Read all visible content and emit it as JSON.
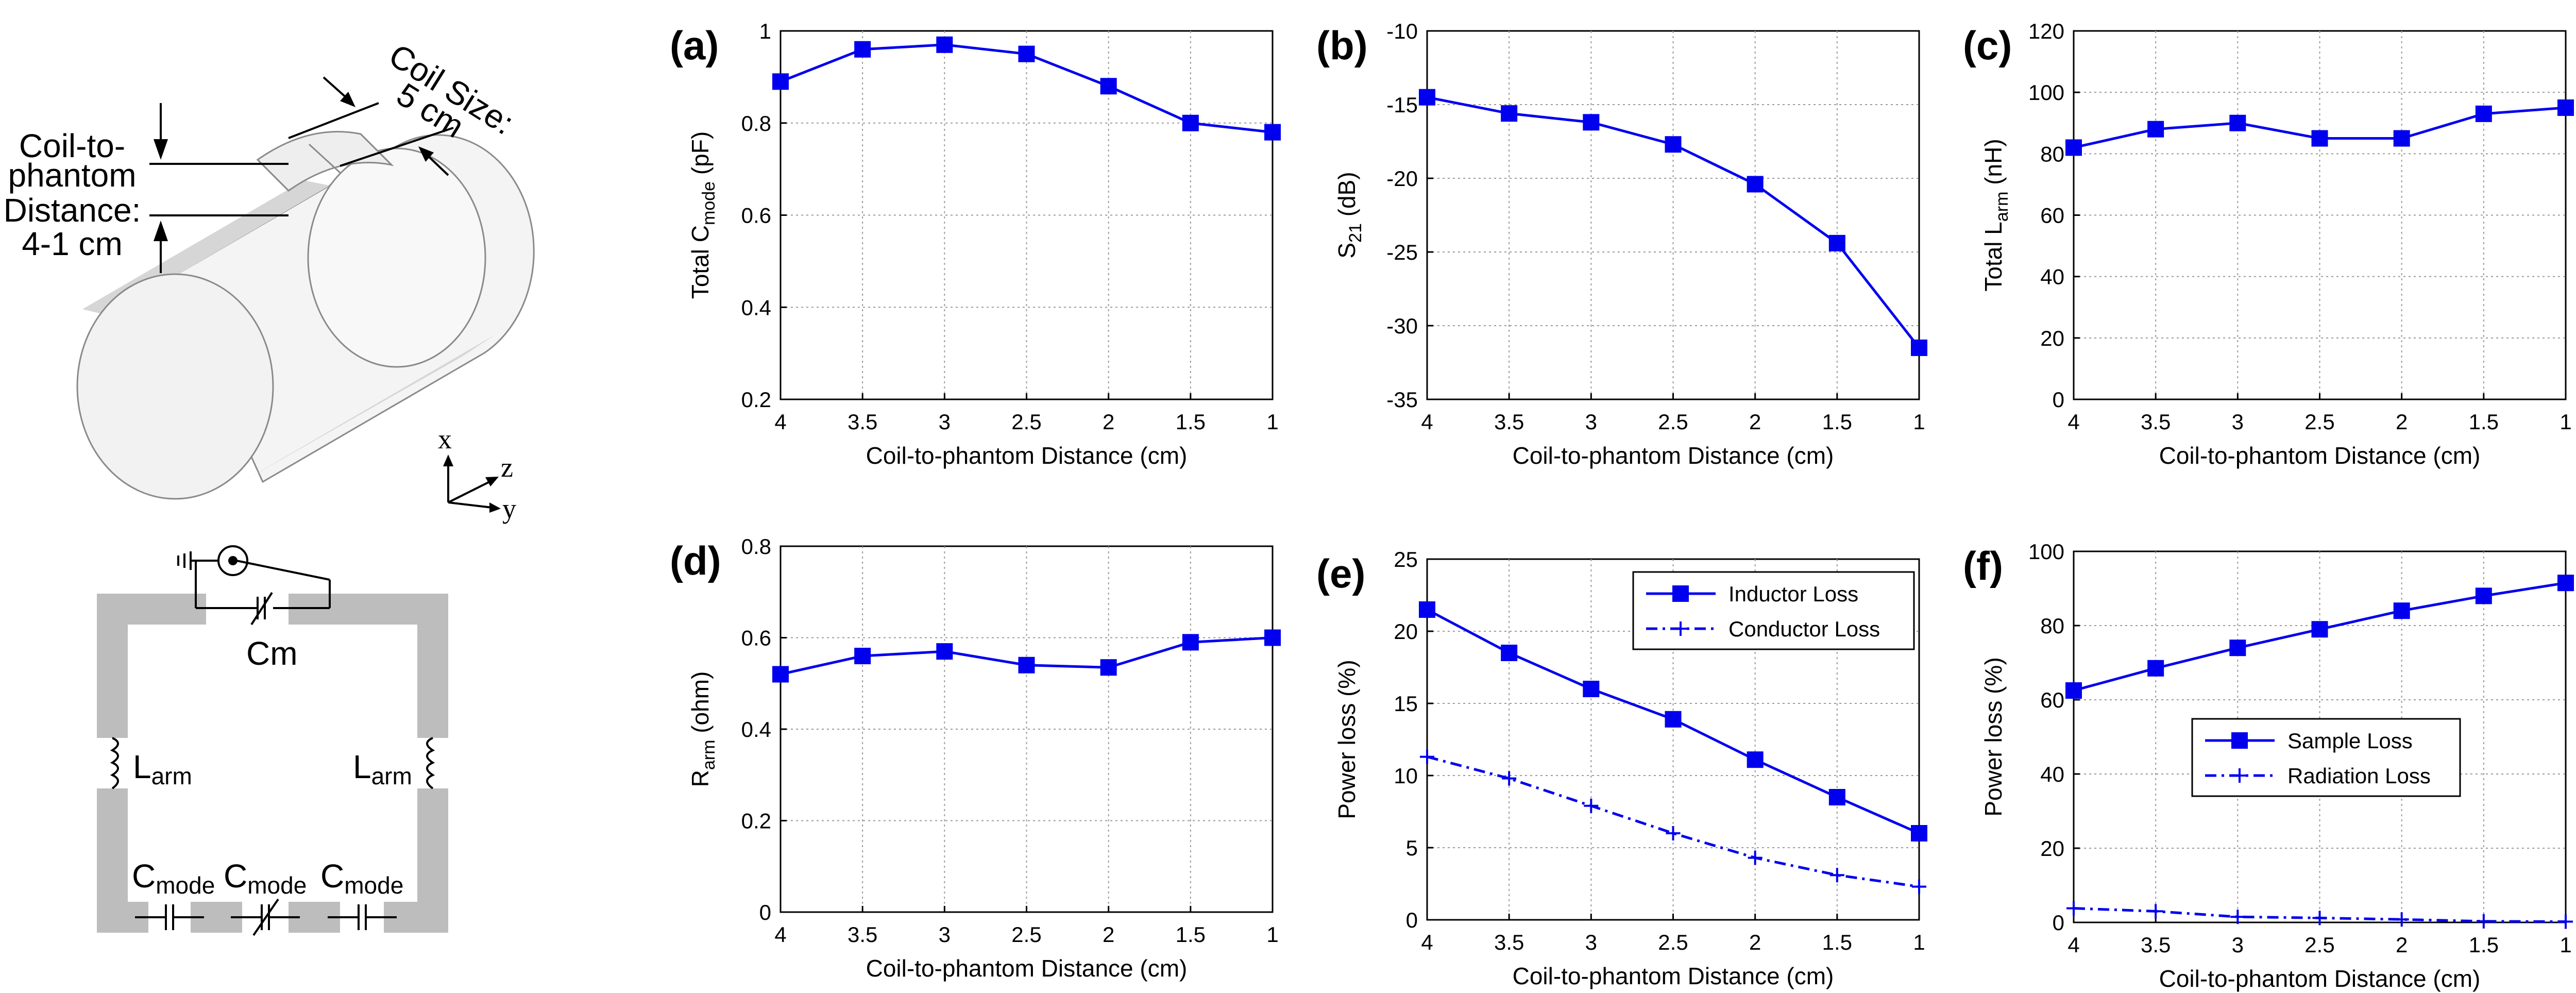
{
  "figure": {
    "phantom": {
      "coil_size_line1": "Coil Size:",
      "coil_size_line2": "5 cm",
      "distance_line1": "Coil-to-",
      "distance_line2": "phantom",
      "distance_line3": "Distance:",
      "distance_line4": "4-1 cm",
      "axis_x": "x",
      "axis_y": "y",
      "axis_z": "z"
    },
    "circuit": {
      "cm_label": "Cm",
      "larm_left_main": "L",
      "larm_left_sub": "arm",
      "larm_right_main": "L",
      "larm_right_sub": "arm",
      "cmode1_main": "C",
      "cmode1_sub": "mode",
      "cmode2_main": "C",
      "cmode2_sub": "mode",
      "cmode3_main": "C",
      "cmode3_sub": "mode"
    }
  },
  "colors": {
    "series": "#0000ee",
    "grid": "#9a9a9a",
    "axis": "#000000"
  },
  "chart_data": [
    {
      "type": "line",
      "panel_label": "(a)",
      "ylabel_main": "Total C",
      "ylabel_sub": "mode",
      "ylabel_tail": " (pF)",
      "xlabel": "Coil-to-phantom Distance (cm)",
      "x_ticks": [
        "4",
        "3.5",
        "3",
        "2.5",
        "2",
        "1.5",
        "1"
      ],
      "y_ticks": [
        "0.2",
        "0.4",
        "0.6",
        "0.8",
        "1"
      ],
      "ylim": [
        0.2,
        1
      ],
      "grid": true,
      "series": [
        {
          "name": "Total C_mode",
          "marker": "square",
          "dash": "solid",
          "x": [
            4,
            3.5,
            3,
            2.5,
            2,
            1.5,
            1
          ],
          "values": [
            0.89,
            0.96,
            0.97,
            0.95,
            0.88,
            0.8,
            0.78
          ]
        }
      ]
    },
    {
      "type": "line",
      "panel_label": "(b)",
      "ylabel_main": "S",
      "ylabel_sub": "21",
      "ylabel_tail": " (dB)",
      "xlabel": "Coil-to-phantom Distance (cm)",
      "x_ticks": [
        "4",
        "3.5",
        "3",
        "2.5",
        "2",
        "1.5",
        "1"
      ],
      "y_ticks": [
        "-35",
        "-30",
        "-25",
        "-20",
        "-15",
        "-10"
      ],
      "ylim": [
        -35,
        -10
      ],
      "grid": true,
      "series": [
        {
          "name": "S21",
          "marker": "square",
          "dash": "solid",
          "x": [
            4,
            3.5,
            3,
            2.5,
            2,
            1.5,
            1
          ],
          "values": [
            -14.5,
            -15.6,
            -16.2,
            -17.7,
            -20.4,
            -24.4,
            -31.5
          ]
        }
      ]
    },
    {
      "type": "line",
      "panel_label": "(c)",
      "ylabel_main": "Total L",
      "ylabel_sub": "arm",
      "ylabel_tail": " (nH)",
      "xlabel": "Coil-to-phantom Distance (cm)",
      "x_ticks": [
        "4",
        "3.5",
        "3",
        "2.5",
        "2",
        "1.5",
        "1"
      ],
      "y_ticks": [
        "0",
        "20",
        "40",
        "60",
        "80",
        "100",
        "120"
      ],
      "ylim": [
        0,
        120
      ],
      "grid": true,
      "series": [
        {
          "name": "Total L_arm",
          "marker": "square",
          "dash": "solid",
          "x": [
            4,
            3.5,
            3,
            2.5,
            2,
            1.5,
            1
          ],
          "values": [
            82,
            88,
            90,
            85,
            85,
            93,
            95
          ]
        }
      ]
    },
    {
      "type": "line",
      "panel_label": "(d)",
      "ylabel_main": "R",
      "ylabel_sub": "arm",
      "ylabel_tail": " (ohm)",
      "xlabel": "Coil-to-phantom Distance (cm)",
      "x_ticks": [
        "4",
        "3.5",
        "3",
        "2.5",
        "2",
        "1.5",
        "1"
      ],
      "y_ticks": [
        "0",
        "0.2",
        "0.4",
        "0.6",
        "0.8"
      ],
      "ylim": [
        0,
        0.8
      ],
      "grid": true,
      "series": [
        {
          "name": "R_arm",
          "marker": "square",
          "dash": "solid",
          "x": [
            4,
            3.5,
            3,
            2.5,
            2,
            1.5,
            1
          ],
          "values": [
            0.52,
            0.56,
            0.57,
            0.54,
            0.535,
            0.59,
            0.6
          ]
        }
      ]
    },
    {
      "type": "line",
      "panel_label": "(e)",
      "ylabel_main": "Power loss (%)",
      "ylabel_sub": "",
      "ylabel_tail": "",
      "xlabel": "Coil-to-phantom Distance (cm)",
      "x_ticks": [
        "4",
        "3.5",
        "3",
        "2.5",
        "2",
        "1.5",
        "1"
      ],
      "y_ticks": [
        "0",
        "5",
        "10",
        "15",
        "20",
        "25"
      ],
      "ylim": [
        0,
        25
      ],
      "grid": true,
      "legend": "top-right",
      "series": [
        {
          "name": "Inductor Loss",
          "marker": "square",
          "dash": "solid",
          "x": [
            4,
            3.5,
            3,
            2.5,
            2,
            1.5,
            1
          ],
          "values": [
            21.5,
            18.5,
            16,
            13.9,
            11.1,
            8.5,
            6
          ]
        },
        {
          "name": "Conductor Loss",
          "marker": "plus",
          "dash": "dashdot",
          "x": [
            4,
            3.5,
            3,
            2.5,
            2,
            1.5,
            1
          ],
          "values": [
            11.3,
            9.8,
            7.9,
            6,
            4.3,
            3.1,
            2.3
          ]
        }
      ]
    },
    {
      "type": "line",
      "panel_label": "(f)",
      "ylabel_main": "Power loss (%)",
      "ylabel_sub": "",
      "ylabel_tail": "",
      "xlabel": "Coil-to-phantom Distance (cm)",
      "x_ticks": [
        "4",
        "3.5",
        "3",
        "2.5",
        "2",
        "1.5",
        "1"
      ],
      "y_ticks": [
        "0",
        "20",
        "40",
        "60",
        "80",
        "100"
      ],
      "ylim": [
        0,
        100
      ],
      "grid": true,
      "legend": "center-right",
      "series": [
        {
          "name": "Sample Loss",
          "marker": "square",
          "dash": "solid",
          "x": [
            4,
            3.5,
            3,
            2.5,
            2,
            1.5,
            1
          ],
          "values": [
            62.5,
            68.5,
            74,
            79,
            84,
            88,
            91.5
          ]
        },
        {
          "name": "Radiation Loss",
          "marker": "plus",
          "dash": "dashdot",
          "x": [
            4,
            3.5,
            3,
            2.5,
            2,
            1.5,
            1
          ],
          "values": [
            3.8,
            3,
            1.5,
            1.2,
            0.8,
            0.3,
            0.2
          ]
        }
      ]
    }
  ]
}
